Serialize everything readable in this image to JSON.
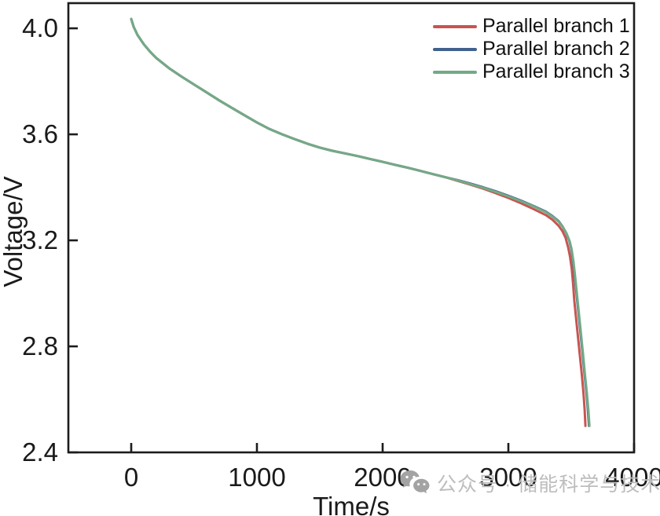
{
  "chart_data": {
    "type": "line",
    "title": "",
    "xlabel": "Time/s",
    "ylabel": "Voltage/V",
    "xlim": [
      -500,
      4000
    ],
    "ylim": [
      2.4,
      4.095
    ],
    "xticks": [
      0,
      1000,
      2000,
      3000,
      4000
    ],
    "yticks": [
      2.4,
      2.8,
      3.2,
      3.6,
      4.0
    ],
    "grid": false,
    "legend_position": "top-right",
    "axis_color": "#1c1c1c",
    "series": [
      {
        "name": "Parallel branch 1",
        "color": "#c85450",
        "points": [
          [
            0,
            4.035
          ],
          [
            20,
            4.005
          ],
          [
            50,
            3.975
          ],
          [
            100,
            3.94
          ],
          [
            150,
            3.912
          ],
          [
            200,
            3.888
          ],
          [
            300,
            3.85
          ],
          [
            400,
            3.818
          ],
          [
            500,
            3.788
          ],
          [
            600,
            3.758
          ],
          [
            700,
            3.728
          ],
          [
            800,
            3.7
          ],
          [
            900,
            3.672
          ],
          [
            1000,
            3.645
          ],
          [
            1100,
            3.62
          ],
          [
            1200,
            3.6
          ],
          [
            1300,
            3.582
          ],
          [
            1400,
            3.565
          ],
          [
            1500,
            3.55
          ],
          [
            1600,
            3.538
          ],
          [
            1700,
            3.528
          ],
          [
            1800,
            3.518
          ],
          [
            1900,
            3.507
          ],
          [
            2000,
            3.496
          ],
          [
            2100,
            3.485
          ],
          [
            2200,
            3.474
          ],
          [
            2300,
            3.462
          ],
          [
            2400,
            3.45
          ],
          [
            2500,
            3.438
          ],
          [
            2600,
            3.424
          ],
          [
            2700,
            3.41
          ],
          [
            2800,
            3.395
          ],
          [
            2900,
            3.378
          ],
          [
            3000,
            3.36
          ],
          [
            3100,
            3.34
          ],
          [
            3200,
            3.318
          ],
          [
            3300,
            3.295
          ],
          [
            3350,
            3.278
          ],
          [
            3400,
            3.255
          ],
          [
            3430,
            3.235
          ],
          [
            3455,
            3.21
          ],
          [
            3475,
            3.175
          ],
          [
            3490,
            3.14
          ],
          [
            3505,
            3.09
          ],
          [
            3515,
            3.035
          ],
          [
            3525,
            2.97
          ],
          [
            3540,
            2.9
          ],
          [
            3555,
            2.83
          ],
          [
            3570,
            2.76
          ],
          [
            3585,
            2.69
          ],
          [
            3598,
            2.62
          ],
          [
            3607,
            2.56
          ],
          [
            3613,
            2.5
          ]
        ]
      },
      {
        "name": "Parallel branch 2",
        "color": "#41608e",
        "points": [
          [
            0,
            4.035
          ],
          [
            20,
            4.005
          ],
          [
            50,
            3.975
          ],
          [
            100,
            3.94
          ],
          [
            150,
            3.912
          ],
          [
            200,
            3.888
          ],
          [
            300,
            3.85
          ],
          [
            400,
            3.818
          ],
          [
            500,
            3.788
          ],
          [
            600,
            3.758
          ],
          [
            700,
            3.728
          ],
          [
            800,
            3.7
          ],
          [
            900,
            3.672
          ],
          [
            1000,
            3.645
          ],
          [
            1100,
            3.62
          ],
          [
            1200,
            3.6
          ],
          [
            1300,
            3.582
          ],
          [
            1400,
            3.565
          ],
          [
            1500,
            3.55
          ],
          [
            1600,
            3.538
          ],
          [
            1700,
            3.528
          ],
          [
            1800,
            3.518
          ],
          [
            1900,
            3.507
          ],
          [
            2000,
            3.496
          ],
          [
            2100,
            3.485
          ],
          [
            2200,
            3.474
          ],
          [
            2300,
            3.462
          ],
          [
            2400,
            3.45
          ],
          [
            2500,
            3.438
          ],
          [
            2600,
            3.427
          ],
          [
            2700,
            3.414
          ],
          [
            2800,
            3.4
          ],
          [
            2900,
            3.385
          ],
          [
            3000,
            3.368
          ],
          [
            3100,
            3.35
          ],
          [
            3200,
            3.33
          ],
          [
            3300,
            3.308
          ],
          [
            3350,
            3.292
          ],
          [
            3400,
            3.272
          ],
          [
            3430,
            3.253
          ],
          [
            3460,
            3.228
          ],
          [
            3485,
            3.198
          ],
          [
            3500,
            3.168
          ],
          [
            3515,
            3.12
          ],
          [
            3530,
            3.055
          ],
          [
            3545,
            2.985
          ],
          [
            3560,
            2.915
          ],
          [
            3575,
            2.845
          ],
          [
            3590,
            2.775
          ],
          [
            3605,
            2.7
          ],
          [
            3620,
            2.63
          ],
          [
            3632,
            2.565
          ],
          [
            3641,
            2.5
          ]
        ]
      },
      {
        "name": "Parallel branch 3",
        "color": "#73aa86",
        "points": [
          [
            0,
            4.035
          ],
          [
            20,
            4.005
          ],
          [
            50,
            3.975
          ],
          [
            100,
            3.94
          ],
          [
            150,
            3.912
          ],
          [
            200,
            3.888
          ],
          [
            300,
            3.85
          ],
          [
            400,
            3.818
          ],
          [
            500,
            3.788
          ],
          [
            600,
            3.758
          ],
          [
            700,
            3.728
          ],
          [
            800,
            3.7
          ],
          [
            900,
            3.672
          ],
          [
            1000,
            3.645
          ],
          [
            1100,
            3.62
          ],
          [
            1200,
            3.6
          ],
          [
            1300,
            3.582
          ],
          [
            1400,
            3.565
          ],
          [
            1500,
            3.55
          ],
          [
            1600,
            3.538
          ],
          [
            1700,
            3.528
          ],
          [
            1800,
            3.518
          ],
          [
            1900,
            3.507
          ],
          [
            2000,
            3.496
          ],
          [
            2100,
            3.485
          ],
          [
            2200,
            3.474
          ],
          [
            2300,
            3.462
          ],
          [
            2400,
            3.45
          ],
          [
            2500,
            3.438
          ],
          [
            2600,
            3.426
          ],
          [
            2700,
            3.412
          ],
          [
            2800,
            3.398
          ],
          [
            2900,
            3.383
          ],
          [
            3000,
            3.366
          ],
          [
            3100,
            3.348
          ],
          [
            3200,
            3.328
          ],
          [
            3300,
            3.306
          ],
          [
            3350,
            3.29
          ],
          [
            3400,
            3.27
          ],
          [
            3434,
            3.25
          ],
          [
            3464,
            3.225
          ],
          [
            3489,
            3.195
          ],
          [
            3504,
            3.165
          ],
          [
            3519,
            3.117
          ],
          [
            3534,
            3.052
          ],
          [
            3549,
            2.982
          ],
          [
            3564,
            2.912
          ],
          [
            3579,
            2.842
          ],
          [
            3594,
            2.772
          ],
          [
            3609,
            2.697
          ],
          [
            3624,
            2.627
          ],
          [
            3637,
            2.558
          ],
          [
            3645,
            2.5
          ]
        ]
      }
    ]
  },
  "watermark": {
    "icon": "wechat-icon",
    "text": "公众号 · 储能科学与技术"
  }
}
